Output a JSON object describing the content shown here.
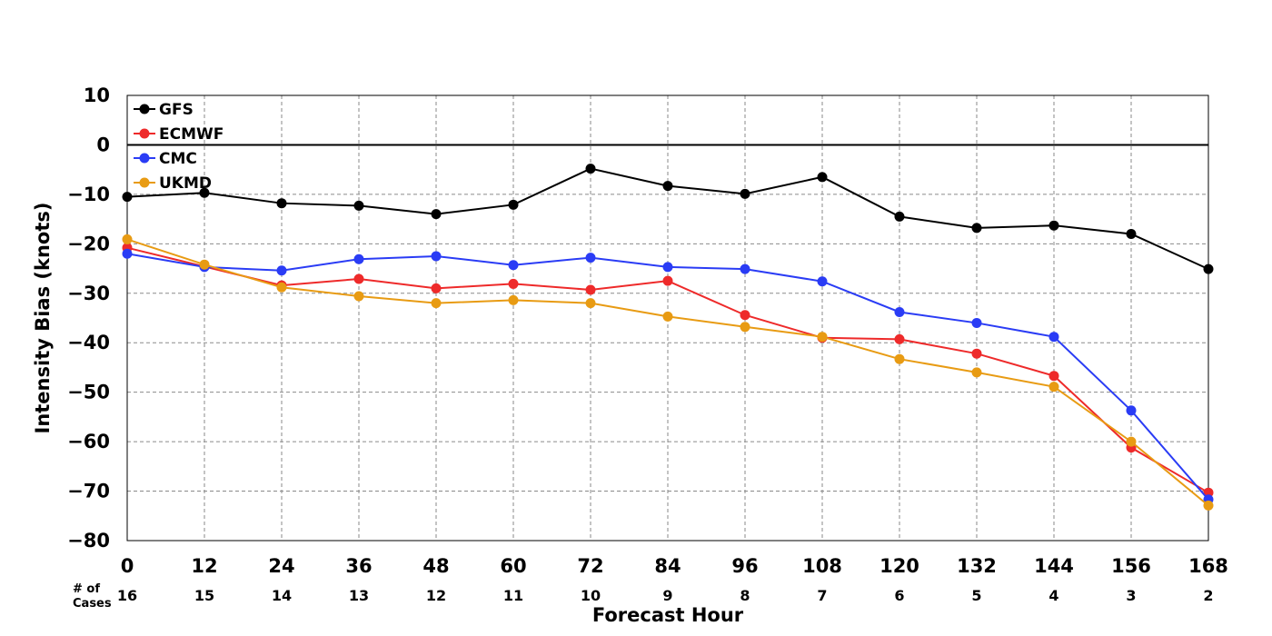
{
  "chart_data": {
    "type": "line",
    "title": "",
    "xlabel": "Forecast Hour",
    "ylabel": "Intensity Bias (knots)",
    "x": [
      0,
      12,
      24,
      36,
      48,
      60,
      72,
      84,
      96,
      108,
      120,
      132,
      144,
      156,
      168
    ],
    "xticks": [
      "0",
      "12",
      "24",
      "36",
      "48",
      "60",
      "72",
      "84",
      "96",
      "108",
      "120",
      "132",
      "144",
      "156",
      "168"
    ],
    "ylim": [
      -80,
      10
    ],
    "yticks": [
      "10",
      "0",
      "−10",
      "−20",
      "−30",
      "−40",
      "−50",
      "−60",
      "−70",
      "−80"
    ],
    "ytick_values": [
      10,
      0,
      -10,
      -20,
      -30,
      -40,
      -50,
      -60,
      -70,
      -80
    ],
    "grid": true,
    "zero_line": true,
    "legend_position": "top-left",
    "cases_label": [
      "# of",
      "Cases"
    ],
    "cases": [
      "16",
      "15",
      "14",
      "13",
      "12",
      "11",
      "10",
      "9",
      "8",
      "7",
      "6",
      "5",
      "4",
      "3",
      "2"
    ],
    "series": [
      {
        "name": "GFS",
        "color": "#000000",
        "values": [
          -10.5,
          -9.7,
          -11.8,
          -12.3,
          -14.0,
          -12.1,
          -4.8,
          -8.3,
          -9.9,
          -6.5,
          -14.5,
          -16.8,
          -16.3,
          -18.0,
          -25.1
        ]
      },
      {
        "name": "ECMWF",
        "color": "#ee2a2a",
        "values": [
          -20.8,
          -24.6,
          -28.4,
          -27.1,
          -29.0,
          -28.1,
          -29.3,
          -27.5,
          -34.4,
          -39.0,
          -39.3,
          -42.2,
          -46.7,
          -61.2,
          -70.3
        ]
      },
      {
        "name": "CMC",
        "color": "#2a3cf5",
        "values": [
          -22.0,
          -24.7,
          -25.4,
          -23.1,
          -22.5,
          -24.3,
          -22.8,
          -24.7,
          -25.1,
          -27.6,
          -33.8,
          -36.0,
          -38.8,
          -53.7,
          -71.7
        ]
      },
      {
        "name": "UKMD",
        "color": "#e89b13",
        "values": [
          -19.1,
          -24.2,
          -28.8,
          -30.6,
          -32.0,
          -31.4,
          -32.0,
          -34.7,
          -36.8,
          -38.8,
          -43.3,
          -46.0,
          -48.9,
          -60.0,
          -72.9
        ]
      }
    ]
  }
}
